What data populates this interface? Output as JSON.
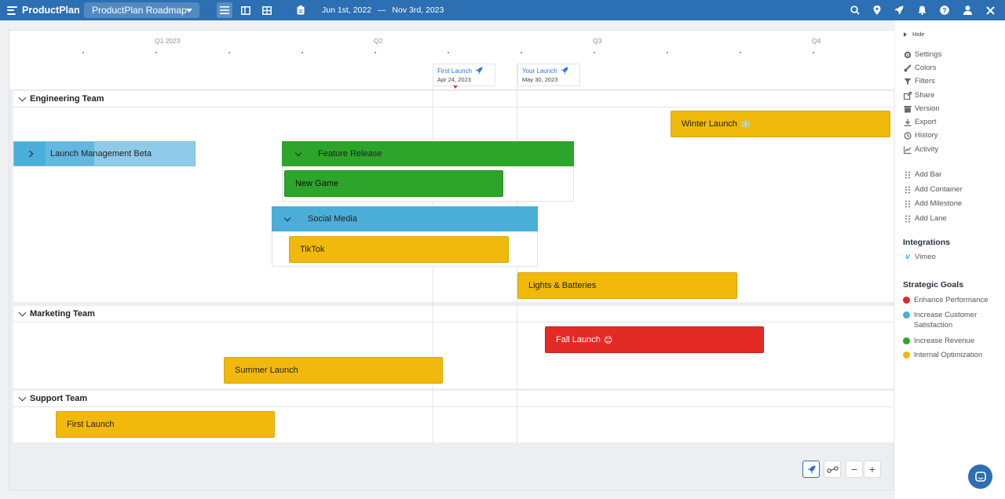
{
  "app": {
    "name": "ProductPlan"
  },
  "header": {
    "roadmap_name": "ProductPlan Roadmap",
    "date_start": "Jun 1st, 2022",
    "date_sep": "—",
    "date_end": "Nov 3rd, 2023"
  },
  "timeline": {
    "quarters": [
      "Q1 2023",
      "Q2",
      "Q3",
      "Q4"
    ]
  },
  "milestones": [
    {
      "name": "First Launch",
      "date": "Apr 24, 2023"
    },
    {
      "name": "Your Launch",
      "date": "May 30, 2023"
    }
  ],
  "lanes": [
    {
      "name": "Engineering Team",
      "bars": [
        {
          "label": "Winter Launch",
          "emoji": "❄️",
          "goal": "Internal Optimization"
        },
        {
          "label": "Launch Management Beta",
          "type": "container"
        },
        {
          "label": "Feature Release",
          "type": "container"
        },
        {
          "label": "New Game",
          "goal": "Increase Revenue"
        },
        {
          "label": "Social Media",
          "type": "container"
        },
        {
          "label": "TikTok",
          "goal": "Internal Optimization"
        },
        {
          "label": "Lights & Batteries",
          "goal": "Internal Optimization"
        }
      ]
    },
    {
      "name": "Marketing Team",
      "bars": [
        {
          "label": "Fall Launch",
          "emoji": "😊",
          "goal": "Enhance Performance"
        },
        {
          "label": "Summer Launch",
          "goal": "Internal Optimization"
        }
      ]
    },
    {
      "name": "Support Team",
      "bars": [
        {
          "label": "First Launch",
          "goal": "Internal Optimization"
        }
      ]
    }
  ],
  "sidebar": {
    "hide_label": "Hide",
    "menu": [
      "Settings",
      "Colors",
      "Filters",
      "Share",
      "Version",
      "Export",
      "History",
      "Activity"
    ],
    "add_items": [
      "Add Bar",
      "Add Container",
      "Add Milestone",
      "Add Lane"
    ],
    "integrations_title": "Integrations",
    "integrations": [
      "Vimeo"
    ],
    "goals_title": "Strategic Goals",
    "goals": [
      {
        "name": "Enhance Performance",
        "color": "#e32a25"
      },
      {
        "name": "Increase Customer Satisfaction",
        "color": "#4aaed9"
      },
      {
        "name": "Increase Revenue",
        "color": "#2da52a"
      },
      {
        "name": "Internal Optimization",
        "color": "#f0b90b"
      }
    ]
  },
  "controls": {
    "zoom_out": "−",
    "zoom_in": "+"
  }
}
